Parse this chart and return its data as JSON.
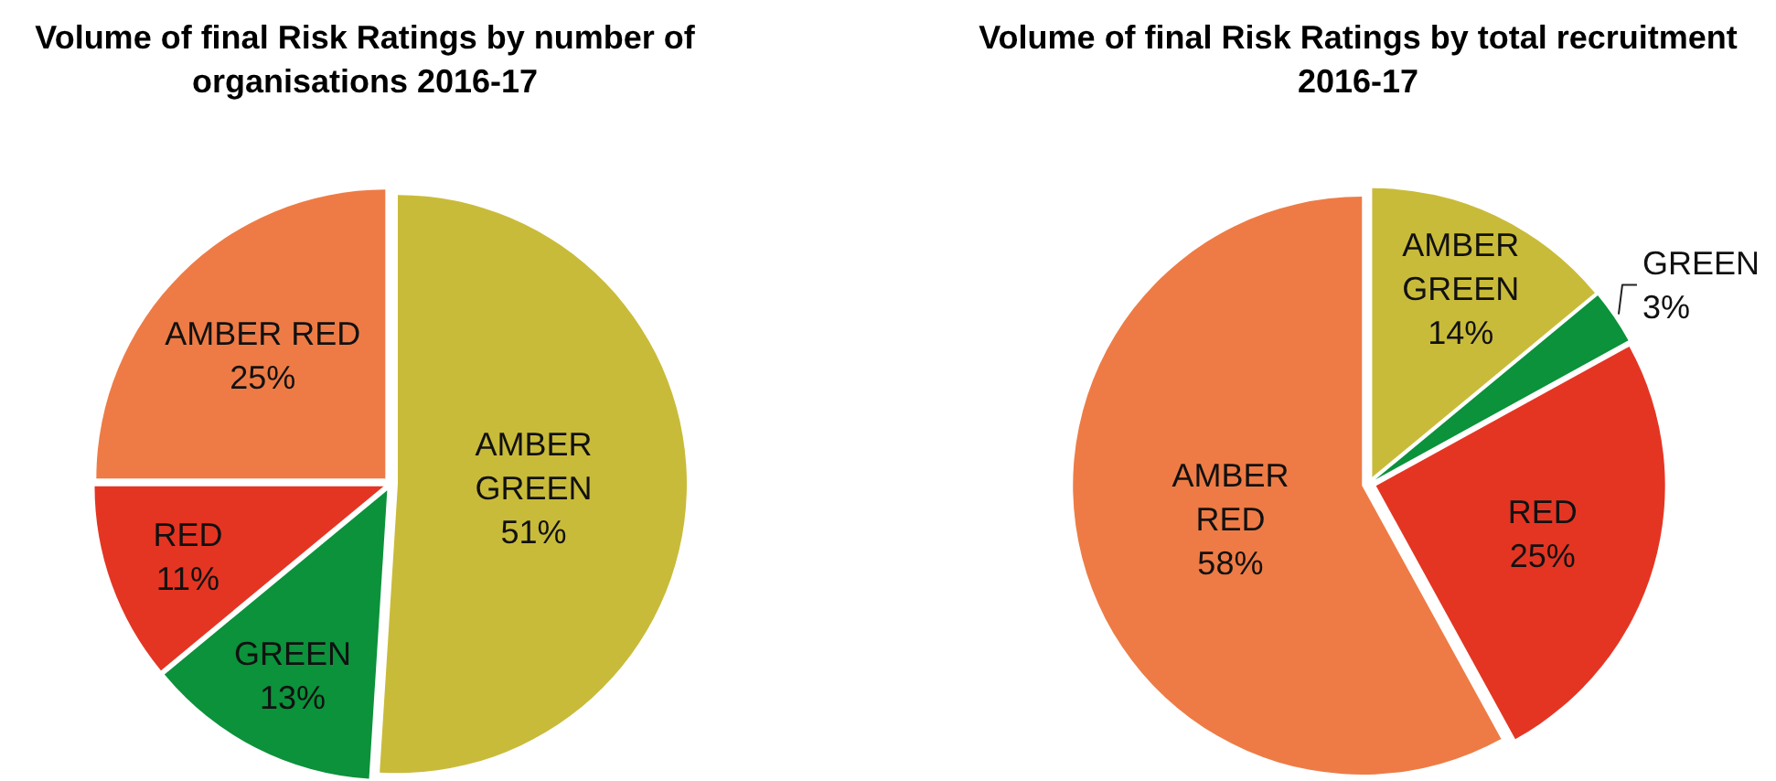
{
  "chart_data": [
    {
      "type": "pie",
      "title": "Volume of final Risk Ratings by number of organisations 2016-17",
      "categories": [
        "AMBER GREEN",
        "GREEN",
        "RED",
        "AMBER RED"
      ],
      "values": [
        51,
        13,
        11,
        25
      ],
      "colors": [
        "#c9bb3a",
        "#0b923a",
        "#e43523",
        "#ee7b45"
      ],
      "value_labels": [
        "51%",
        "13%",
        "11%",
        "25%"
      ]
    },
    {
      "type": "pie",
      "title": "Volume of final Risk Ratings by total recruitment 2016-17",
      "categories": [
        "AMBER GREEN",
        "GREEN",
        "RED",
        "AMBER RED"
      ],
      "values": [
        14,
        3,
        25,
        58
      ],
      "colors": [
        "#c9bb3a",
        "#0b923a",
        "#e43523",
        "#ee7b45"
      ],
      "value_labels": [
        "14%",
        "3%",
        "25%",
        "58%"
      ]
    }
  ]
}
